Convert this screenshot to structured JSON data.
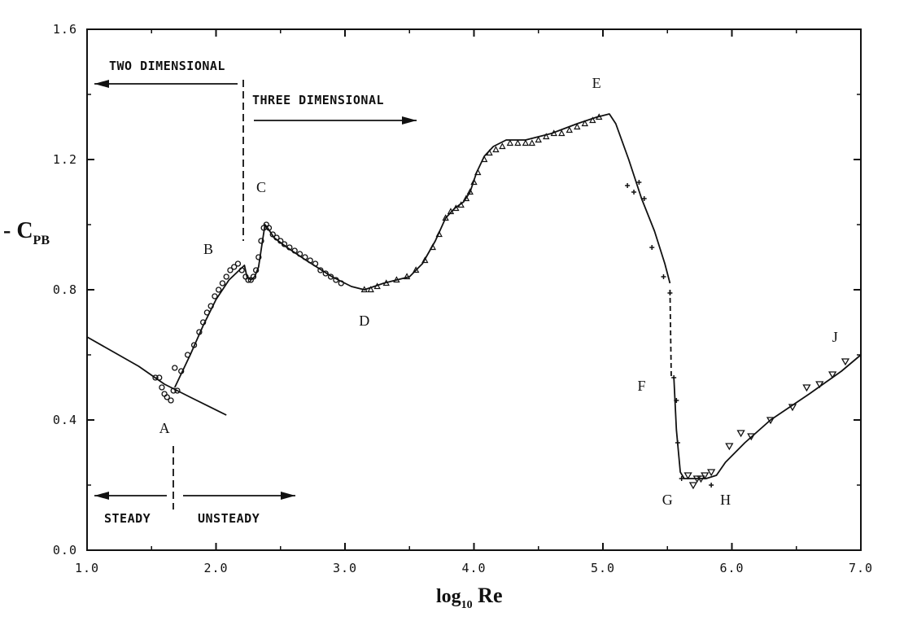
{
  "chart_data": {
    "type": "line",
    "xlabel_main": "log",
    "xlabel_sub": "10",
    "xlabel_tail": " Re",
    "ylabel_prefix": "- C",
    "ylabel_sub": "PB",
    "xlim": [
      1.0,
      7.0
    ],
    "ylim": [
      0.0,
      1.6
    ],
    "x_ticks": [
      "1.0",
      "2.0",
      "3.0",
      "4.0",
      "5.0",
      "6.0",
      "7.0"
    ],
    "x_tick_values": [
      1.0,
      2.0,
      3.0,
      4.0,
      5.0,
      6.0,
      7.0
    ],
    "y_ticks": [
      "0.0",
      "0.4",
      "0.8",
      "1.2",
      "1.6"
    ],
    "y_tick_values": [
      0.0,
      0.4,
      0.8,
      1.2,
      1.6
    ],
    "grid": false,
    "annotations": {
      "two_dimensional": "TWO DIMENSIONAL",
      "three_dimensional": "THREE DIMENSIONAL",
      "steady": "STEADY",
      "unsteady": "UNSTEADY"
    },
    "points": [
      {
        "label": "A",
        "x": 1.6,
        "y": 0.36
      },
      {
        "label": "B",
        "x": 1.94,
        "y": 0.91
      },
      {
        "label": "C",
        "x": 2.35,
        "y": 1.1
      },
      {
        "label": "D",
        "x": 3.15,
        "y": 0.69
      },
      {
        "label": "E",
        "x": 4.95,
        "y": 1.42
      },
      {
        "label": "F",
        "x": 5.3,
        "y": 0.49
      },
      {
        "label": "G",
        "x": 5.5,
        "y": 0.14
      },
      {
        "label": "H",
        "x": 5.95,
        "y": 0.14
      },
      {
        "label": "J",
        "x": 6.8,
        "y": 0.64
      }
    ],
    "series": [
      {
        "name": "",
        "style": "solid",
        "x": [
          1.0,
          1.2,
          1.4,
          1.6,
          1.8,
          2.08
        ],
        "y": [
          0.655,
          0.61,
          0.565,
          0.51,
          0.47,
          0.415
        ]
      },
      {
        "name": "",
        "style": "solid",
        "x": [
          1.68,
          1.8,
          1.9,
          2.0,
          2.1,
          2.18,
          2.22,
          2.24,
          2.27,
          2.3,
          2.33,
          2.36,
          2.38,
          2.4,
          2.45,
          2.55,
          2.7,
          2.9,
          3.05,
          3.15,
          3.3,
          3.5,
          3.6,
          3.7,
          3.78,
          3.85,
          3.92,
          3.97,
          4.02,
          4.08,
          4.15,
          4.25,
          4.4,
          4.6,
          4.8,
          4.95,
          5.05,
          5.1,
          5.2,
          5.3,
          5.4,
          5.48,
          5.52
        ],
        "y": [
          0.5,
          0.6,
          0.69,
          0.77,
          0.83,
          0.86,
          0.875,
          0.84,
          0.83,
          0.84,
          0.87,
          0.95,
          1.0,
          0.99,
          0.96,
          0.93,
          0.89,
          0.84,
          0.81,
          0.8,
          0.82,
          0.84,
          0.88,
          0.95,
          1.02,
          1.05,
          1.07,
          1.1,
          1.16,
          1.21,
          1.24,
          1.26,
          1.26,
          1.28,
          1.31,
          1.33,
          1.34,
          1.31,
          1.2,
          1.08,
          0.98,
          0.88,
          0.82
        ]
      },
      {
        "name": "",
        "style": "dashed",
        "x": [
          5.52,
          5.53,
          5.55
        ],
        "y": [
          0.8,
          0.53,
          0.53
        ]
      },
      {
        "name": "",
        "style": "solid",
        "x": [
          5.55,
          5.57,
          5.6,
          5.63,
          5.7,
          5.8,
          5.88,
          5.95,
          6.1,
          6.3,
          6.6,
          6.85,
          7.0
        ],
        "y": [
          0.53,
          0.37,
          0.24,
          0.22,
          0.22,
          0.22,
          0.23,
          0.27,
          0.33,
          0.4,
          0.48,
          0.55,
          0.6
        ]
      }
    ],
    "markers_circle": {
      "x": [
        1.53,
        1.56,
        1.58,
        1.6,
        1.62,
        1.65,
        1.67,
        1.7,
        1.68,
        1.73,
        1.78,
        1.83,
        1.87,
        1.9,
        1.93,
        1.96,
        1.99,
        2.02,
        2.05,
        2.08,
        2.11,
        2.14,
        2.17,
        2.2,
        2.23,
        2.25,
        2.27,
        2.29,
        2.31,
        2.33,
        2.35,
        2.37,
        2.39,
        2.41,
        2.44,
        2.47,
        2.5,
        2.53,
        2.57,
        2.61,
        2.65,
        2.69,
        2.73,
        2.77,
        2.81,
        2.85,
        2.89,
        2.93,
        2.97
      ],
      "y": [
        0.53,
        0.53,
        0.5,
        0.48,
        0.47,
        0.46,
        0.49,
        0.49,
        0.56,
        0.55,
        0.6,
        0.63,
        0.67,
        0.7,
        0.73,
        0.75,
        0.78,
        0.8,
        0.82,
        0.84,
        0.86,
        0.87,
        0.88,
        0.86,
        0.84,
        0.83,
        0.83,
        0.84,
        0.86,
        0.9,
        0.95,
        0.99,
        1.0,
        0.99,
        0.97,
        0.96,
        0.95,
        0.94,
        0.93,
        0.92,
        0.91,
        0.9,
        0.89,
        0.88,
        0.86,
        0.85,
        0.84,
        0.83,
        0.82
      ]
    },
    "markers_triangle_up": {
      "x": [
        3.15,
        3.2,
        3.25,
        3.32,
        3.4,
        3.48,
        3.55,
        3.62,
        3.68,
        3.73,
        3.78,
        3.82,
        3.86,
        3.9,
        3.94,
        3.97,
        4.0,
        4.03,
        4.08,
        4.12,
        4.17,
        4.22,
        4.28,
        4.34,
        4.4,
        4.45,
        4.5,
        4.56,
        4.62,
        4.68,
        4.74,
        4.8,
        4.86,
        4.92,
        4.97
      ],
      "y": [
        0.8,
        0.8,
        0.81,
        0.82,
        0.83,
        0.84,
        0.86,
        0.89,
        0.93,
        0.97,
        1.02,
        1.04,
        1.05,
        1.06,
        1.08,
        1.1,
        1.13,
        1.16,
        1.2,
        1.22,
        1.23,
        1.24,
        1.25,
        1.25,
        1.25,
        1.25,
        1.26,
        1.27,
        1.28,
        1.28,
        1.29,
        1.3,
        1.31,
        1.32,
        1.33
      ]
    },
    "markers_plus": {
      "x": [
        5.19,
        5.24,
        5.28,
        5.32,
        5.38,
        5.47,
        5.52,
        5.55,
        5.57,
        5.58,
        5.61,
        5.84
      ],
      "y": [
        1.12,
        1.1,
        1.13,
        1.08,
        0.93,
        0.84,
        0.79,
        0.53,
        0.46,
        0.33,
        0.22,
        0.2
      ]
    },
    "markers_triangle_down": {
      "x": [
        5.66,
        5.7,
        5.73,
        5.76,
        5.79,
        5.84,
        5.98,
        6.07,
        6.15,
        6.3,
        6.47,
        6.58,
        6.68,
        6.78,
        6.88
      ],
      "y": [
        0.23,
        0.2,
        0.22,
        0.22,
        0.23,
        0.24,
        0.32,
        0.36,
        0.35,
        0.4,
        0.44,
        0.5,
        0.51,
        0.54,
        0.58
      ]
    }
  }
}
